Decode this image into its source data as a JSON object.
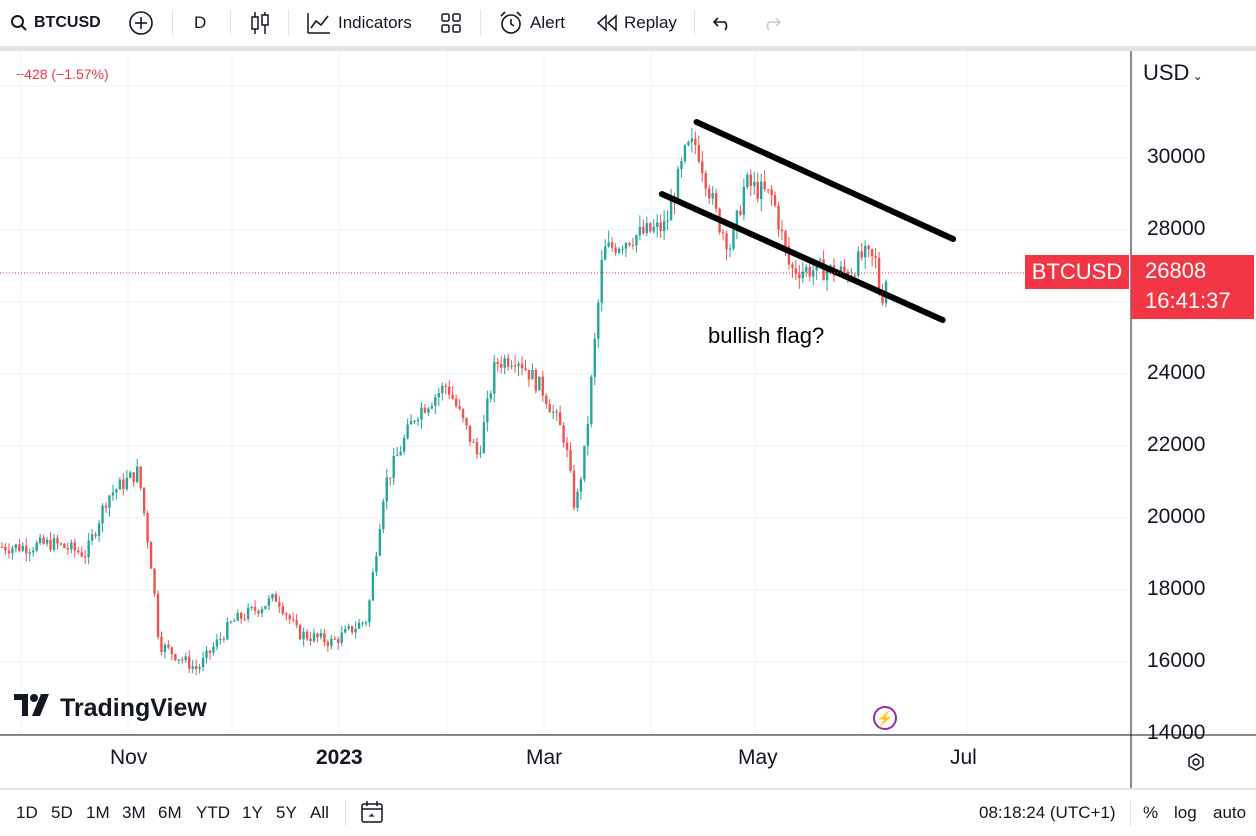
{
  "toolbar": {
    "symbol": "BTCUSD",
    "interval": "D",
    "indicators_label": "Indicators",
    "alert_label": "Alert",
    "replay_label": "Replay"
  },
  "legend": {
    "change": "−428 (−1.57%)"
  },
  "price_axis": {
    "currency": "USD",
    "ticks": [
      "30000",
      "28000",
      "24000",
      "22000",
      "20000",
      "18000",
      "16000",
      "14000"
    ]
  },
  "time_axis": {
    "ticks": [
      "Nov",
      "2023",
      "Mar",
      "May",
      "Jul"
    ]
  },
  "last_price": {
    "symbol": "BTCUSD",
    "price": "26808",
    "countdown": "16:41:37"
  },
  "annotation": {
    "text": "bullish flag?"
  },
  "branding": {
    "name": "TradingView"
  },
  "bottom_bar": {
    "ranges": [
      "1D",
      "5D",
      "1M",
      "3M",
      "6M",
      "YTD",
      "1Y",
      "5Y",
      "All"
    ],
    "clock": "08:18:24 (UTC+1)",
    "percent": "%",
    "log": "log",
    "auto": "auto"
  },
  "colors": {
    "up": "#26a69a",
    "down": "#ef5350",
    "accent": "#f23645",
    "trendline": "#000000"
  },
  "chart_data": {
    "type": "candlestick",
    "series_name": "BTCUSD",
    "y_range": [
      14000,
      32000
    ],
    "anchors": [
      [
        "2022-10-03",
        19200
      ],
      [
        "2022-10-10",
        19300
      ],
      [
        "2022-10-20",
        19000
      ],
      [
        "2022-10-26",
        20600
      ],
      [
        "2022-11-04",
        21300
      ],
      [
        "2022-11-08",
        18500
      ],
      [
        "2022-11-10",
        16500
      ],
      [
        "2022-11-21",
        15800
      ],
      [
        "2022-12-01",
        17100
      ],
      [
        "2022-12-14",
        17800
      ],
      [
        "2022-12-20",
        16800
      ],
      [
        "2022-12-30",
        16550
      ],
      [
        "2023-01-09",
        17200
      ],
      [
        "2023-01-14",
        20900
      ],
      [
        "2023-01-23",
        22900
      ],
      [
        "2023-02-01",
        23700
      ],
      [
        "2023-02-10",
        21700
      ],
      [
        "2023-02-15",
        24300
      ],
      [
        "2023-02-21",
        24500
      ],
      [
        "2023-03-01",
        23500
      ],
      [
        "2023-03-07",
        22200
      ],
      [
        "2023-03-10",
        20200
      ],
      [
        "2023-03-13",
        22000
      ],
      [
        "2023-03-18",
        27400
      ],
      [
        "2023-03-26",
        27800
      ],
      [
        "2023-04-05",
        28100
      ],
      [
        "2023-04-11",
        30200
      ],
      [
        "2023-04-14",
        30400
      ],
      [
        "2023-04-20",
        28300
      ],
      [
        "2023-04-24",
        27500
      ],
      [
        "2023-04-28",
        29300
      ],
      [
        "2023-05-06",
        28900
      ],
      [
        "2023-05-11",
        26900
      ],
      [
        "2023-05-20",
        26900
      ],
      [
        "2023-05-28",
        26800
      ],
      [
        "2023-06-01",
        27300
      ],
      [
        "2023-06-05",
        27100
      ],
      [
        "2023-06-06",
        25900
      ],
      [
        "2023-06-08",
        26808
      ]
    ],
    "trendlines": [
      {
        "from": [
          "2023-04-14",
          31000
        ],
        "to": [
          "2023-06-27",
          27750
        ]
      },
      {
        "from": [
          "2023-04-04",
          29000
        ],
        "to": [
          "2023-06-24",
          25500
        ]
      }
    ]
  }
}
